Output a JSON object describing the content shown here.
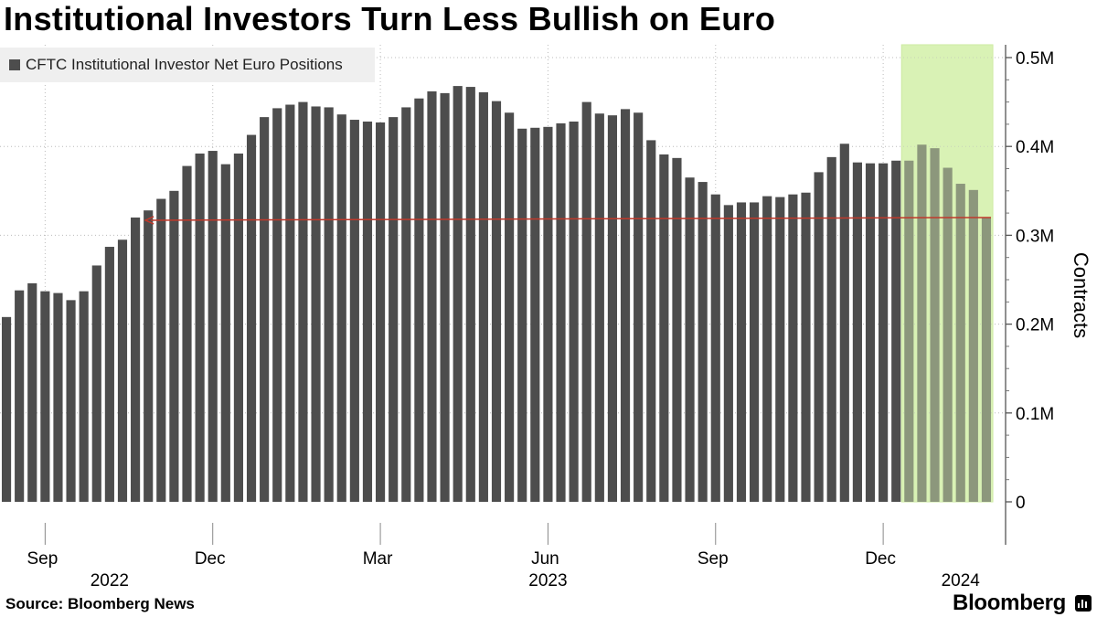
{
  "chart_data": {
    "type": "bar",
    "title": "Institutional Investors Turn Less Bullish on Euro",
    "legend": [
      "CFTC Institutional Investor Net Euro Positions"
    ],
    "ylabel": "Contracts",
    "ylim": [
      0,
      500000
    ],
    "y_ticks": [
      {
        "value": 0,
        "label": "0"
      },
      {
        "value": 100000,
        "label": "0.1M"
      },
      {
        "value": 200000,
        "label": "0.2M"
      },
      {
        "value": 300000,
        "label": "0.3M"
      },
      {
        "value": 400000,
        "label": "0.4M"
      },
      {
        "value": 500000,
        "label": "0.5M"
      }
    ],
    "x_month_ticks": [
      {
        "index": 3,
        "label": "Sep"
      },
      {
        "index": 16,
        "label": "Dec"
      },
      {
        "index": 29,
        "label": "Mar"
      },
      {
        "index": 42,
        "label": "Jun"
      },
      {
        "index": 55,
        "label": "Sep"
      },
      {
        "index": 68,
        "label": "Dec"
      }
    ],
    "x_year_labels": [
      {
        "index": 8,
        "label": "2022"
      },
      {
        "index": 42,
        "label": "2023"
      },
      {
        "index": 74,
        "label": "2024"
      }
    ],
    "highlight": {
      "start_index": 70,
      "end_index": 76,
      "color": "#d9f2b5"
    },
    "annotation_arrow": {
      "from_index": 76,
      "to_index": 11,
      "value": 320000,
      "color": "#c0392b"
    },
    "values": [
      208000,
      238000,
      246000,
      237000,
      235000,
      227000,
      237000,
      266000,
      287000,
      295000,
      320000,
      328000,
      341000,
      350000,
      378000,
      392000,
      395000,
      380000,
      392000,
      413000,
      433000,
      443000,
      447000,
      450000,
      445000,
      444000,
      436000,
      430000,
      428000,
      427000,
      433000,
      444000,
      454000,
      462000,
      460000,
      468000,
      467000,
      461000,
      451000,
      438000,
      420000,
      421000,
      422000,
      426000,
      428000,
      450000,
      437000,
      435000,
      442000,
      438000,
      407000,
      391000,
      387000,
      365000,
      360000,
      346000,
      334000,
      337000,
      337000,
      344000,
      343000,
      346000,
      348000,
      371000,
      388000,
      403000,
      382000,
      381000,
      381000,
      384000,
      384000,
      402000,
      398000,
      376000,
      358000,
      351000,
      320000
    ]
  },
  "legend_label": "CFTC Institutional Investor Net Euro Positions",
  "source": "Source:  Bloomberg News",
  "brand": "Bloomberg"
}
